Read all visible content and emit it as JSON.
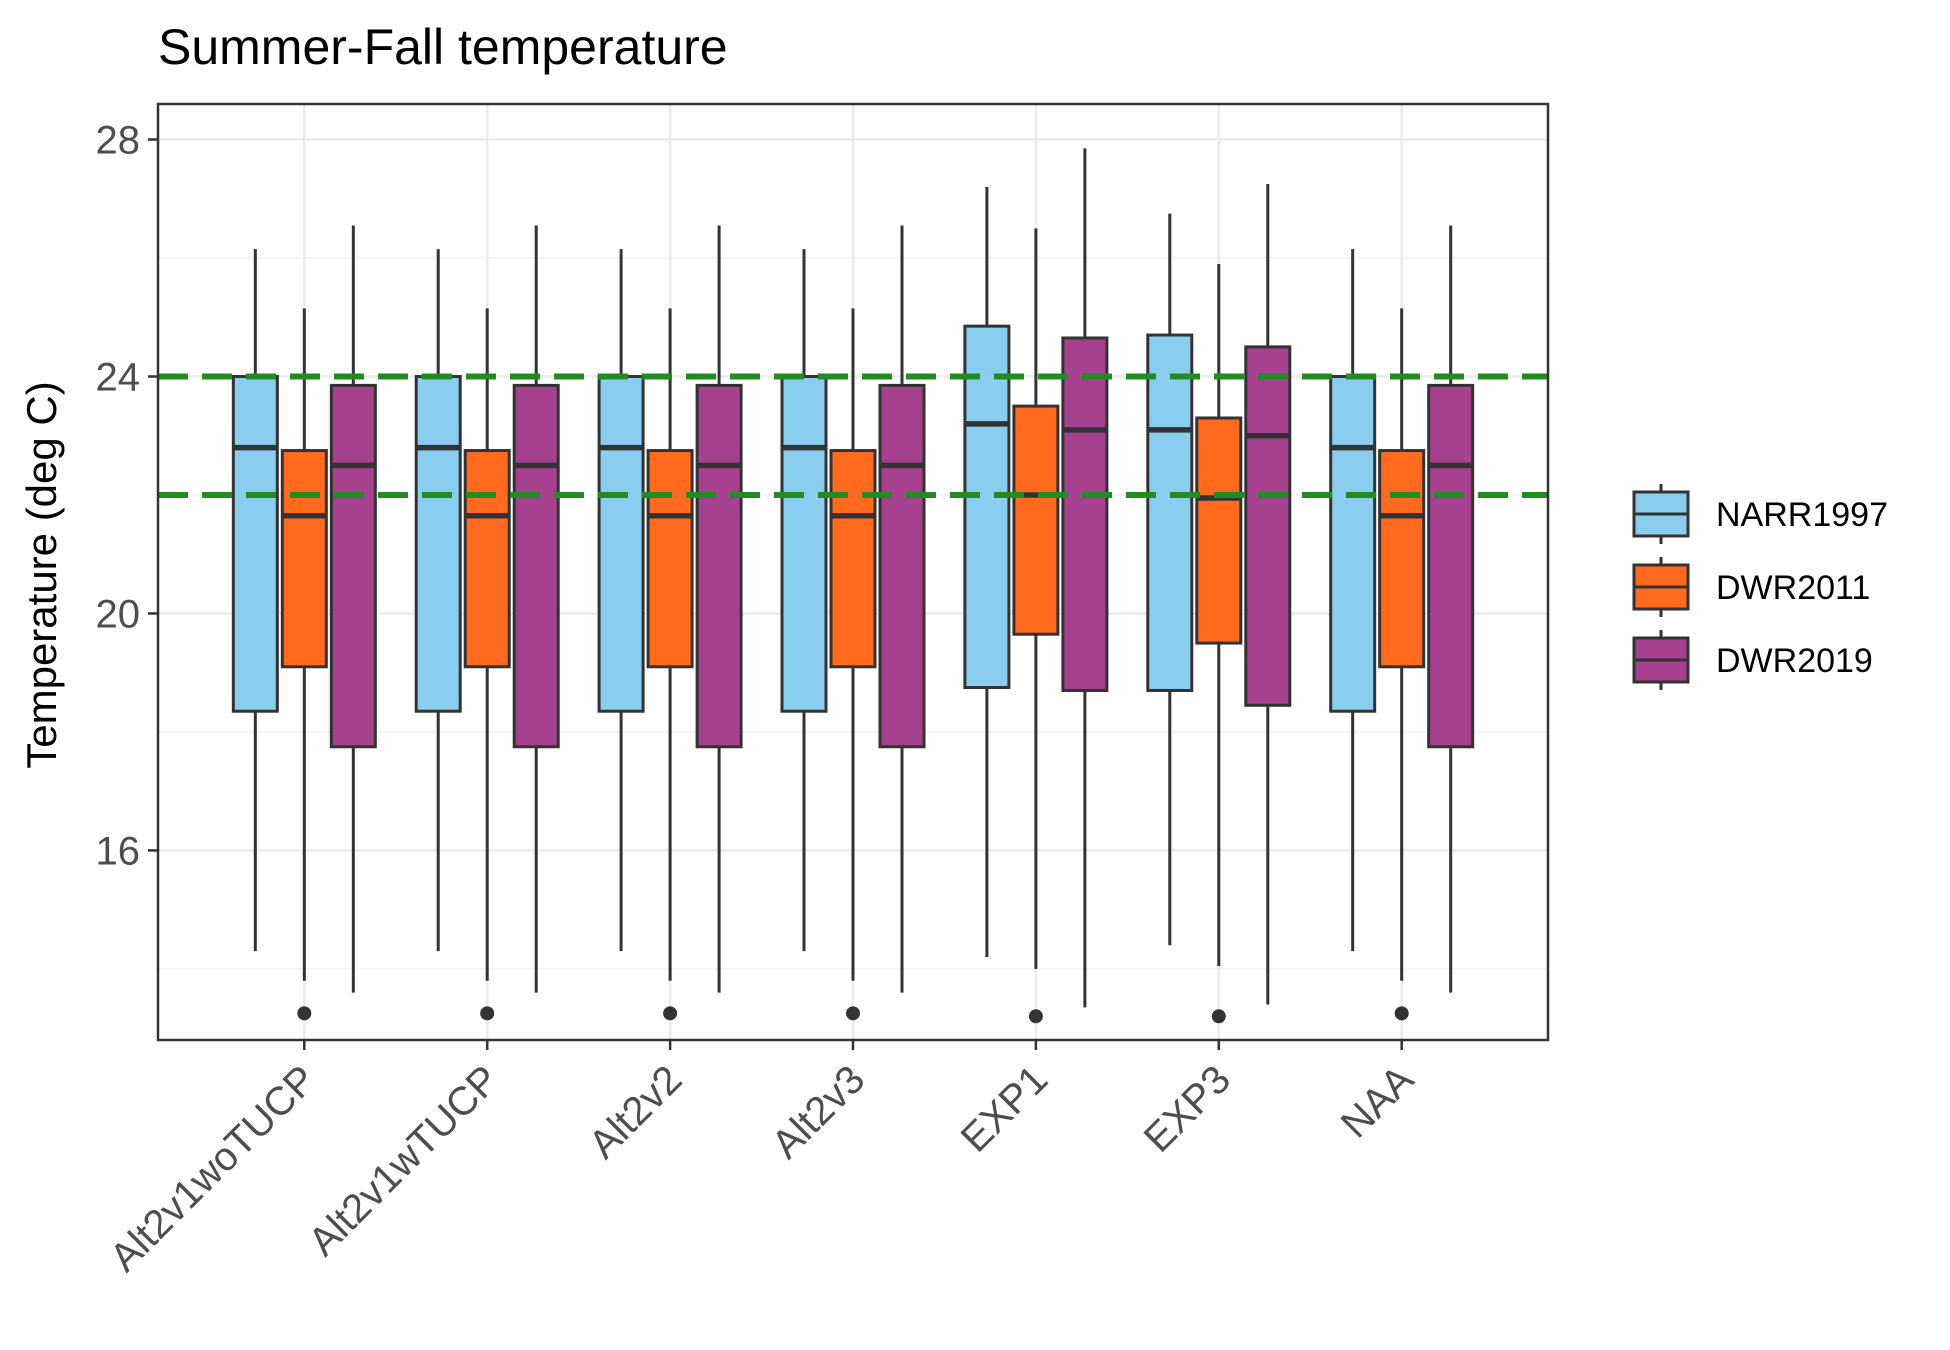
{
  "chart_data": {
    "type": "box",
    "title": "Summer-Fall temperature",
    "xlabel": "",
    "ylabel": "Temperature (deg C)",
    "ylim": [
      12.8,
      28.6
    ],
    "yticks": [
      16,
      20,
      24,
      28
    ],
    "grid": true,
    "legend_position": "right",
    "categories": [
      "Alt2v1woTUCP",
      "Alt2v1wTUCP",
      "Alt2v2",
      "Alt2v3",
      "EXP1",
      "EXP3",
      "NAA"
    ],
    "reference_lines": [
      {
        "y": 24.0,
        "color": "#228b22",
        "style": "dashed"
      },
      {
        "y": 22.0,
        "color": "#228b22",
        "style": "dashed"
      }
    ],
    "series": [
      {
        "name": "NARR1997",
        "color": "#89cdef",
        "boxes": [
          {
            "min": 14.3,
            "q1": 18.35,
            "median": 22.8,
            "q3": 24.0,
            "max": 26.15,
            "outliers": []
          },
          {
            "min": 14.3,
            "q1": 18.35,
            "median": 22.8,
            "q3": 24.0,
            "max": 26.15,
            "outliers": []
          },
          {
            "min": 14.3,
            "q1": 18.35,
            "median": 22.8,
            "q3": 24.0,
            "max": 26.15,
            "outliers": []
          },
          {
            "min": 14.3,
            "q1": 18.35,
            "median": 22.8,
            "q3": 24.0,
            "max": 26.15,
            "outliers": []
          },
          {
            "min": 14.2,
            "q1": 18.75,
            "median": 23.2,
            "q3": 24.85,
            "max": 27.2,
            "outliers": []
          },
          {
            "min": 14.4,
            "q1": 18.7,
            "median": 23.1,
            "q3": 24.7,
            "max": 26.75,
            "outliers": []
          },
          {
            "min": 14.3,
            "q1": 18.35,
            "median": 22.8,
            "q3": 24.0,
            "max": 26.15,
            "outliers": []
          }
        ]
      },
      {
        "name": "DWR2011",
        "color": "#ff6a1f",
        "boxes": [
          {
            "min": 13.8,
            "q1": 19.1,
            "median": 21.65,
            "q3": 22.75,
            "max": 25.15,
            "outliers": [
              13.25
            ]
          },
          {
            "min": 13.8,
            "q1": 19.1,
            "median": 21.65,
            "q3": 22.75,
            "max": 25.15,
            "outliers": [
              13.25
            ]
          },
          {
            "min": 13.8,
            "q1": 19.1,
            "median": 21.65,
            "q3": 22.75,
            "max": 25.15,
            "outliers": [
              13.25
            ]
          },
          {
            "min": 13.8,
            "q1": 19.1,
            "median": 21.65,
            "q3": 22.75,
            "max": 25.15,
            "outliers": [
              13.25
            ]
          },
          {
            "min": 14.0,
            "q1": 19.65,
            "median": 22.0,
            "q3": 23.5,
            "max": 26.5,
            "outliers": [
              13.2
            ]
          },
          {
            "min": 14.05,
            "q1": 19.5,
            "median": 21.95,
            "q3": 23.3,
            "max": 25.9,
            "outliers": [
              13.2
            ]
          },
          {
            "min": 13.8,
            "q1": 19.1,
            "median": 21.65,
            "q3": 22.75,
            "max": 25.15,
            "outliers": [
              13.25
            ]
          }
        ]
      },
      {
        "name": "DWR2019",
        "color": "#a6418f",
        "boxes": [
          {
            "min": 13.6,
            "q1": 17.75,
            "median": 22.5,
            "q3": 23.85,
            "max": 26.55,
            "outliers": []
          },
          {
            "min": 13.6,
            "q1": 17.75,
            "median": 22.5,
            "q3": 23.85,
            "max": 26.55,
            "outliers": []
          },
          {
            "min": 13.6,
            "q1": 17.75,
            "median": 22.5,
            "q3": 23.85,
            "max": 26.55,
            "outliers": []
          },
          {
            "min": 13.6,
            "q1": 17.75,
            "median": 22.5,
            "q3": 23.85,
            "max": 26.55,
            "outliers": []
          },
          {
            "min": 13.35,
            "q1": 18.7,
            "median": 23.1,
            "q3": 24.65,
            "max": 27.85,
            "outliers": []
          },
          {
            "min": 13.4,
            "q1": 18.45,
            "median": 23.0,
            "q3": 24.5,
            "max": 27.25,
            "outliers": []
          },
          {
            "min": 13.6,
            "q1": 17.75,
            "median": 22.5,
            "q3": 23.85,
            "max": 26.55,
            "outliers": []
          }
        ]
      }
    ]
  }
}
